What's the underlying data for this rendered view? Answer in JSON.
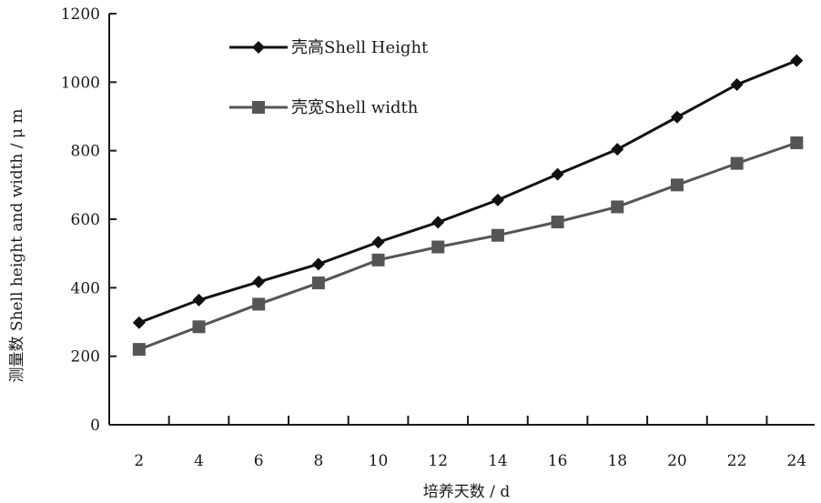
{
  "chart_data": {
    "type": "line",
    "x": [
      2,
      4,
      6,
      8,
      10,
      12,
      14,
      16,
      18,
      20,
      22,
      24
    ],
    "xlabel": "培养天数 / d",
    "ylabel": "测量数 Shell height and width / μ m",
    "ylim": [
      0,
      1200
    ],
    "yticks": [
      0,
      200,
      400,
      600,
      800,
      1000,
      1200
    ],
    "grid": false,
    "legend_position": "top-left",
    "series": [
      {
        "name": "壳高Shell Height",
        "marker": "diamond",
        "color": "#111111",
        "values": [
          298,
          364,
          417,
          469,
          533,
          591,
          656,
          731,
          804,
          898,
          993,
          1063
        ]
      },
      {
        "name": "壳宽Shell width",
        "marker": "square",
        "color": "#555555",
        "values": [
          220,
          286,
          352,
          414,
          481,
          519,
          553,
          592,
          636,
          700,
          763,
          823
        ]
      }
    ]
  }
}
